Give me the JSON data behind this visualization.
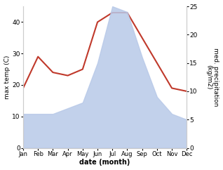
{
  "months": [
    "Jan",
    "Feb",
    "Mar",
    "Apr",
    "May",
    "Jun",
    "Jul",
    "Aug",
    "Sep",
    "Oct",
    "Nov",
    "Dec"
  ],
  "month_positions": [
    1,
    2,
    3,
    4,
    5,
    6,
    7,
    8,
    9,
    10,
    11,
    12
  ],
  "max_temp": [
    19,
    29,
    24,
    23,
    25,
    40,
    43,
    43,
    35,
    27,
    19,
    18
  ],
  "precipitation": [
    6,
    6,
    6,
    7,
    8,
    15,
    25,
    24,
    16,
    9,
    6,
    5
  ],
  "temp_color": "#c0392b",
  "precip_color": "#b8c9e8",
  "precip_fill_alpha": 0.85,
  "left_ylim": [
    0,
    45
  ],
  "right_ylim": [
    0,
    25
  ],
  "left_yticks": [
    0,
    10,
    20,
    30,
    40
  ],
  "right_yticks": [
    0,
    5,
    10,
    15,
    20,
    25
  ],
  "xlabel": "date (month)",
  "ylabel_left": "max temp (C)",
  "ylabel_right": "med. precipitation\n(kg/m2)",
  "background_color": "#ffffff"
}
